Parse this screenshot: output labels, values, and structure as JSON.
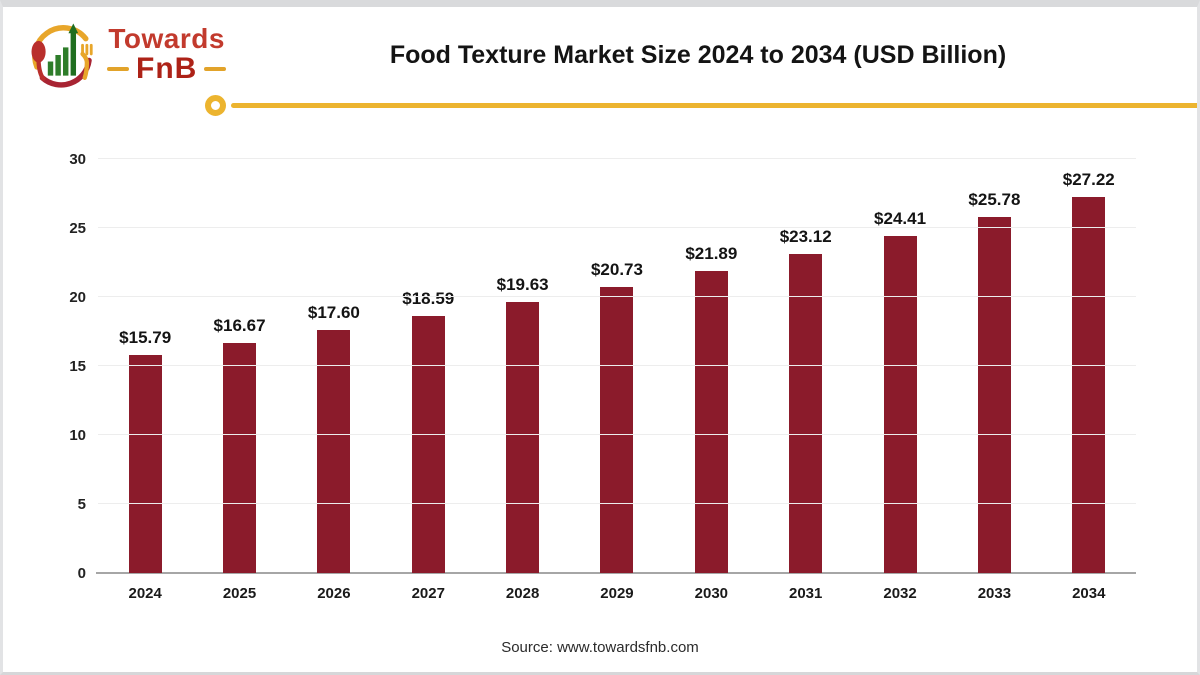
{
  "header": {
    "logo": {
      "line1": "Towards",
      "line2": "FnB"
    },
    "title": "Food Texture Market Size 2024 to 2034 (USD Billion)"
  },
  "chart_data": {
    "type": "bar",
    "title": "Food Texture Market Size 2024 to 2034 (USD Billion)",
    "categories": [
      "2024",
      "2025",
      "2026",
      "2027",
      "2028",
      "2029",
      "2030",
      "2031",
      "2032",
      "2033",
      "2034"
    ],
    "values": [
      15.79,
      16.67,
      17.6,
      18.59,
      19.63,
      20.73,
      21.89,
      23.12,
      24.41,
      25.78,
      27.22
    ],
    "data_labels": [
      "$15.79",
      "$16.67",
      "$17.60",
      "$18.59",
      "$19.63",
      "$20.73",
      "$21.89",
      "$23.12",
      "$24.41",
      "$25.78",
      "$27.22"
    ],
    "xlabel": "",
    "ylabel": "",
    "ylim": [
      0,
      30
    ],
    "yticks": [
      0,
      5,
      10,
      15,
      20,
      25,
      30
    ],
    "grid": true,
    "legend_position": "none",
    "bar_color": "#8b1b2b"
  },
  "footer": {
    "source": "Source: www.towardsfnb.com"
  },
  "colors": {
    "bar": "#8b1b2b",
    "accent_gold": "#ecb42f",
    "logo_red": "#c23a2d",
    "logo_dark_red": "#ad2217",
    "logo_green": "#2e7d2a",
    "axis_line": "#a6a6a6",
    "gridline": "#ededed",
    "title_text": "#141414"
  }
}
